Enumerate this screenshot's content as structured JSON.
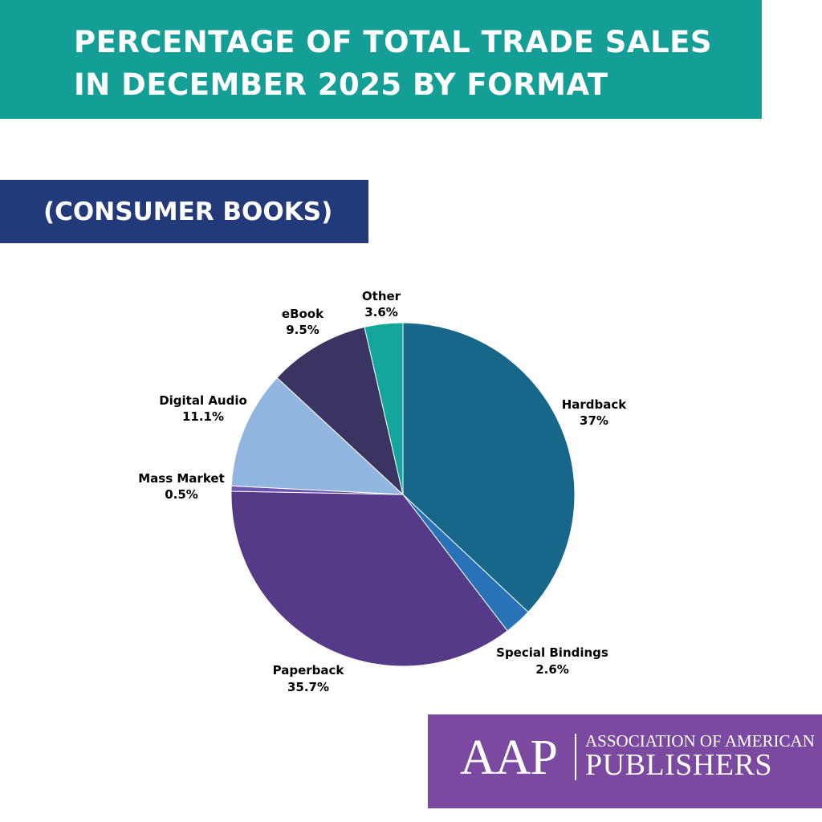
{
  "header": {
    "title": "PERCENTAGE OF TOTAL TRADE SALES IN DECEMBER 2025 BY FORMAT",
    "subtitle": "(CONSUMER BOOKS)",
    "title_bg": "#139e96",
    "subtitle_bg": "#233a7a"
  },
  "chart_data": {
    "type": "pie",
    "title": "PERCENTAGE OF TOTAL TRADE SALES IN DECEMBER 2025 BY FORMAT",
    "subtitle": "(CONSUMER BOOKS)",
    "legend": "none",
    "start": "12 o'clock, clockwise",
    "slices": [
      {
        "label": "Hardback",
        "value": 37,
        "value_label": "37%",
        "color": "#17678b"
      },
      {
        "label": "Special Bindings",
        "value": 2.6,
        "value_label": "2.6%",
        "color": "#2872b8"
      },
      {
        "label": "Paperback",
        "value": 35.7,
        "value_label": "35.7%",
        "color": "#543a87"
      },
      {
        "label": "Mass Market",
        "value": 0.5,
        "value_label": "0.5%",
        "color": "#6a55b0"
      },
      {
        "label": "Digital Audio",
        "value": 11.1,
        "value_label": "11.1%",
        "color": "#90b6df"
      },
      {
        "label": "eBook",
        "value": 9.5,
        "value_label": "9.5%",
        "color": "#3a3463"
      },
      {
        "label": "Other",
        "value": 3.6,
        "value_label": "3.6%",
        "color": "#14a59c"
      }
    ]
  },
  "logo": {
    "mark": "AAP",
    "line1": "ASSOCIATION OF AMERICAN",
    "line2": "PUBLISHERS",
    "bg": "#7b4aa0"
  }
}
